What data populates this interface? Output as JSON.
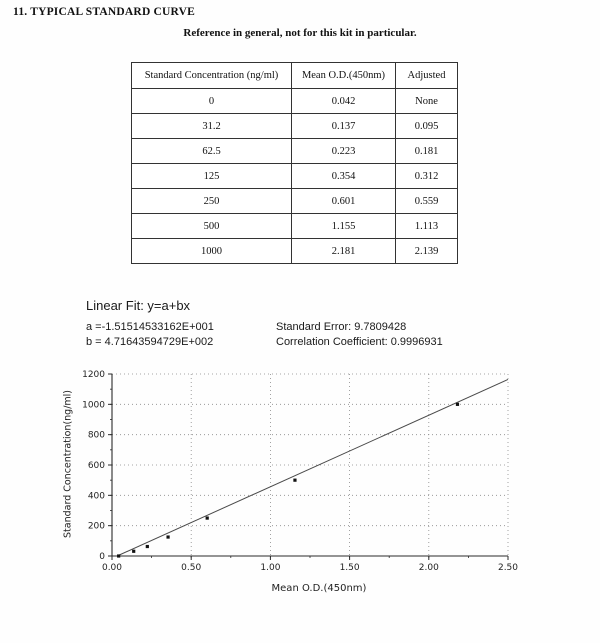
{
  "page": {
    "title": "11. TYPICAL STANDARD CURVE",
    "subtitle": "Reference in general, not for this kit in particular."
  },
  "table": {
    "headers": [
      "Standard Concentration (ng/ml)",
      "Mean O.D.(450nm)",
      "Adjusted"
    ],
    "rows": [
      [
        "0",
        "0.042",
        "None"
      ],
      [
        "31.2",
        "0.137",
        "0.095"
      ],
      [
        "62.5",
        "0.223",
        "0.181"
      ],
      [
        "125",
        "0.354",
        "0.312"
      ],
      [
        "250",
        "0.601",
        "0.559"
      ],
      [
        "500",
        "1.155",
        "1.113"
      ],
      [
        "1000",
        "2.181",
        "2.139"
      ]
    ]
  },
  "fit": {
    "title": "Linear Fit: y=a+bx",
    "a_label": "a =-1.51514533162E+001",
    "b_label": "b = 4.71643594729E+002",
    "std_error": "Standard Error: 9.7809428",
    "corr": "Correlation Coefficient: 0.9996931"
  },
  "chart_data": {
    "type": "scatter",
    "title": "",
    "xlabel": "Mean O.D.(450nm)",
    "ylabel": "Standard Concentration(ng/ml)",
    "x": [
      0.042,
      0.137,
      0.223,
      0.354,
      0.601,
      1.155,
      2.181
    ],
    "y": [
      0,
      31.2,
      62.5,
      125,
      250,
      500,
      1000
    ],
    "fit_line": {
      "a": -15.1514533162,
      "b": 471.643594729
    },
    "xlim": [
      0,
      2.5
    ],
    "ylim": [
      0,
      1200
    ],
    "xticks": [
      "0.00",
      "0.50",
      "1.00",
      "1.50",
      "2.00",
      "2.50"
    ],
    "yticks": [
      0,
      200,
      400,
      600,
      800,
      1000,
      1200
    ],
    "x_minor_step": 0.25,
    "y_minor_step": 100,
    "grid": "dotted",
    "legend": "none"
  }
}
